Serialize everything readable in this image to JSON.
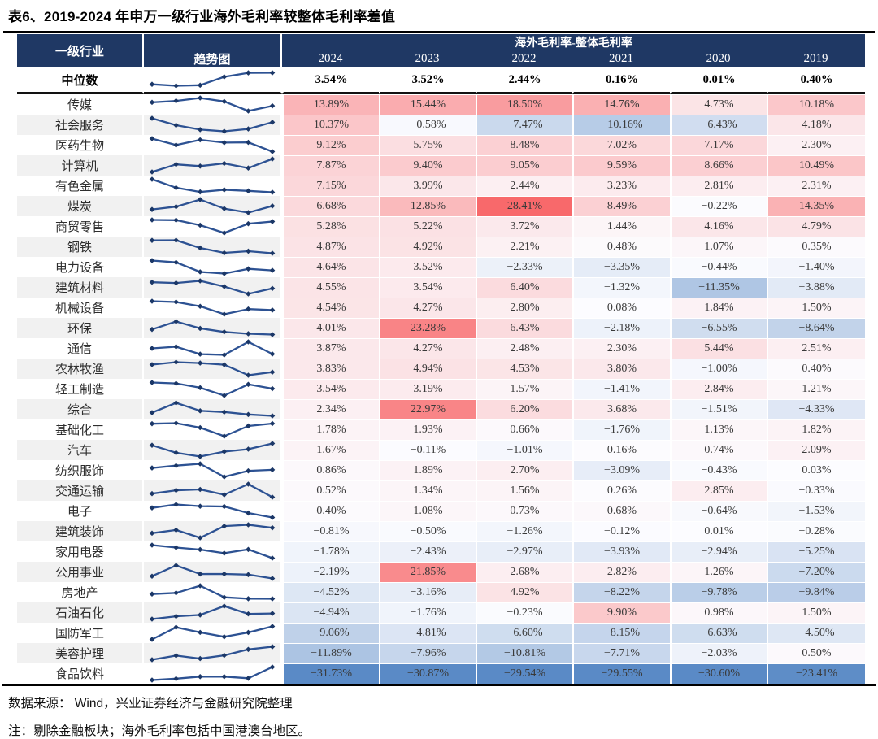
{
  "title": "表6、2019-2024 年申万一级行业海外毛利率较整体毛利率差值",
  "footer": {
    "source": "数据来源： Wind，兴业证券经济与金融研究院整理",
    "note": "注：剔除金融板块；海外毛利率包括中国港澳台地区。"
  },
  "chart_data": {
    "type": "table",
    "title": "表6、2019-2024 年申万一级行业海外毛利率较整体毛利率差值",
    "row_header": "一级行业",
    "trend_header": "趋势图",
    "group_header": "海外毛利率-整体毛利率",
    "columns": [
      "2024",
      "2023",
      "2022",
      "2021",
      "2020",
      "2019"
    ],
    "value_unit": "%",
    "median": {
      "label": "中位数",
      "values": [
        3.54,
        3.52,
        2.44,
        0.16,
        0.01,
        0.4
      ]
    },
    "rows": [
      {
        "label": "传媒",
        "values": [
          13.89,
          15.44,
          18.5,
          14.76,
          4.73,
          10.18
        ]
      },
      {
        "label": "社会服务",
        "values": [
          10.37,
          -0.58,
          -7.47,
          -10.16,
          -6.43,
          4.18
        ]
      },
      {
        "label": "医药生物",
        "values": [
          9.12,
          5.75,
          8.48,
          7.02,
          7.17,
          2.3
        ]
      },
      {
        "label": "计算机",
        "values": [
          7.87,
          9.4,
          9.05,
          9.59,
          8.66,
          10.49
        ]
      },
      {
        "label": "有色金属",
        "values": [
          7.15,
          3.99,
          2.44,
          3.23,
          2.81,
          2.31
        ]
      },
      {
        "label": "煤炭",
        "values": [
          6.68,
          12.85,
          28.41,
          8.49,
          -0.22,
          14.35
        ]
      },
      {
        "label": "商贸零售",
        "values": [
          5.28,
          5.22,
          3.72,
          1.44,
          4.16,
          4.79
        ]
      },
      {
        "label": "钢铁",
        "values": [
          4.87,
          4.92,
          2.21,
          0.48,
          1.07,
          0.35
        ]
      },
      {
        "label": "电力设备",
        "values": [
          4.64,
          3.52,
          -2.33,
          -3.35,
          -0.44,
          -1.4
        ]
      },
      {
        "label": "建筑材料",
        "values": [
          4.55,
          3.54,
          6.4,
          -1.32,
          -11.35,
          -3.88
        ]
      },
      {
        "label": "机械设备",
        "values": [
          4.54,
          4.27,
          2.8,
          0.08,
          1.84,
          1.5
        ]
      },
      {
        "label": "环保",
        "values": [
          4.01,
          23.28,
          6.43,
          -2.18,
          -6.55,
          -8.64
        ]
      },
      {
        "label": "通信",
        "values": [
          3.87,
          4.27,
          2.48,
          2.3,
          5.44,
          2.51
        ]
      },
      {
        "label": "农林牧渔",
        "values": [
          3.83,
          4.94,
          4.53,
          3.8,
          -1.0,
          0.4
        ]
      },
      {
        "label": "轻工制造",
        "values": [
          3.54,
          3.19,
          1.57,
          -1.41,
          2.84,
          1.21
        ]
      },
      {
        "label": "综合",
        "values": [
          2.34,
          22.97,
          6.2,
          3.68,
          -1.51,
          -4.33
        ]
      },
      {
        "label": "基础化工",
        "values": [
          1.78,
          1.93,
          0.66,
          -1.76,
          1.13,
          1.82
        ]
      },
      {
        "label": "汽车",
        "values": [
          1.67,
          -0.11,
          -1.01,
          0.16,
          0.74,
          2.09
        ]
      },
      {
        "label": "纺织服饰",
        "values": [
          0.86,
          1.89,
          2.7,
          -3.09,
          -0.43,
          0.03
        ]
      },
      {
        "label": "交通运输",
        "values": [
          0.52,
          1.34,
          1.56,
          0.26,
          2.85,
          -0.33
        ]
      },
      {
        "label": "电子",
        "values": [
          0.4,
          1.08,
          0.73,
          0.68,
          -0.64,
          -1.53
        ]
      },
      {
        "label": "建筑装饰",
        "values": [
          -0.81,
          -0.5,
          -1.26,
          -0.12,
          0.01,
          -0.28
        ]
      },
      {
        "label": "家用电器",
        "values": [
          -1.78,
          -2.43,
          -2.97,
          -3.93,
          -2.94,
          -5.25
        ]
      },
      {
        "label": "公用事业",
        "values": [
          -2.19,
          21.85,
          2.68,
          2.82,
          1.26,
          -7.2
        ]
      },
      {
        "label": "房地产",
        "values": [
          -4.52,
          -3.16,
          4.92,
          -8.22,
          -9.78,
          -9.84
        ]
      },
      {
        "label": "石油石化",
        "values": [
          -4.94,
          -1.76,
          -0.23,
          9.9,
          0.98,
          1.5
        ]
      },
      {
        "label": "国防军工",
        "values": [
          -9.06,
          -4.81,
          -6.6,
          -8.15,
          -6.63,
          -4.5
        ]
      },
      {
        "label": "美容护理",
        "values": [
          -11.89,
          -7.96,
          -10.81,
          -7.71,
          -2.03,
          0.5
        ]
      },
      {
        "label": "食品饮料",
        "values": [
          -31.73,
          -30.87,
          -29.54,
          -29.55,
          -30.6,
          -23.41
        ]
      }
    ],
    "color_scale": {
      "red": "#F8696B",
      "mid": "#FCFCFF",
      "blue": "#5A8AC6",
      "positive_max": 28.41,
      "negative_min": -24
    },
    "header_bg": "#1F3864",
    "sparkline_line_color": "#2D5293",
    "sparkline_marker_color": "#1B3767",
    "legend_note": "red = positive difference, blue = negative difference"
  }
}
